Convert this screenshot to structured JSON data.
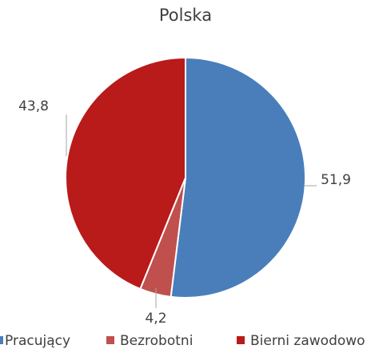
{
  "chart_data": {
    "type": "pie",
    "title": "Polska",
    "categories": [
      "Pracujący",
      "Bezrobotni",
      "Bierni zawodowo"
    ],
    "values": [
      51.9,
      4.2,
      43.8
    ],
    "value_labels": [
      "51,9",
      "4,2",
      "43,8"
    ],
    "colors": [
      "#4a7ebb",
      "#c0504d",
      "#b91a1a"
    ],
    "legend": "bottom"
  }
}
